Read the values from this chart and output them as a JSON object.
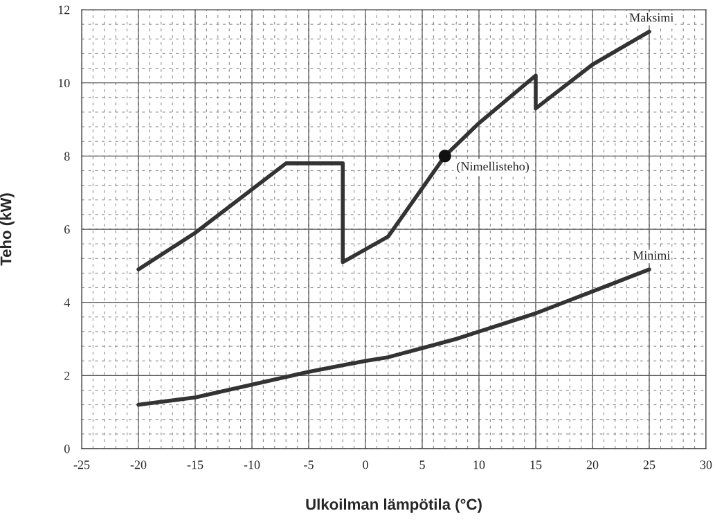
{
  "chart_data": {
    "type": "line",
    "xlabel": "Ulkoilman lämpötila (°C)",
    "ylabel": "Teho (kW)",
    "xlim": [
      -25,
      30
    ],
    "ylim": [
      0,
      12
    ],
    "xticks": [
      -25,
      -20,
      -15,
      -10,
      -5,
      0,
      5,
      10,
      15,
      20,
      25,
      30
    ],
    "yticks": [
      0,
      2,
      4,
      6,
      8,
      10,
      12
    ],
    "grid": true,
    "legend": false,
    "series": [
      {
        "name": "Maksimi",
        "color": "#333333",
        "x": [
          -20,
          -15,
          -7,
          -2,
          -2,
          2,
          7,
          10,
          15,
          15,
          20,
          25
        ],
        "values": [
          4.9,
          5.9,
          7.8,
          7.8,
          5.1,
          5.8,
          8.0,
          8.9,
          10.2,
          9.3,
          10.5,
          11.4
        ]
      },
      {
        "name": "Minimi",
        "color": "#333333",
        "x": [
          -20,
          -15,
          -10,
          -5,
          0,
          2,
          5,
          8,
          10,
          15,
          20,
          25
        ],
        "values": [
          1.2,
          1.4,
          1.75,
          2.1,
          2.4,
          2.5,
          2.75,
          3.0,
          3.2,
          3.7,
          4.3,
          4.9
        ]
      },
      {
        "type": "scatter",
        "color": "#111111",
        "marker": "circle",
        "x": [
          7
        ],
        "values": [
          8.0
        ]
      }
    ],
    "annotations": [
      {
        "text": "(Nimellisteho)",
        "x": 7,
        "y": 8.0
      }
    ]
  }
}
